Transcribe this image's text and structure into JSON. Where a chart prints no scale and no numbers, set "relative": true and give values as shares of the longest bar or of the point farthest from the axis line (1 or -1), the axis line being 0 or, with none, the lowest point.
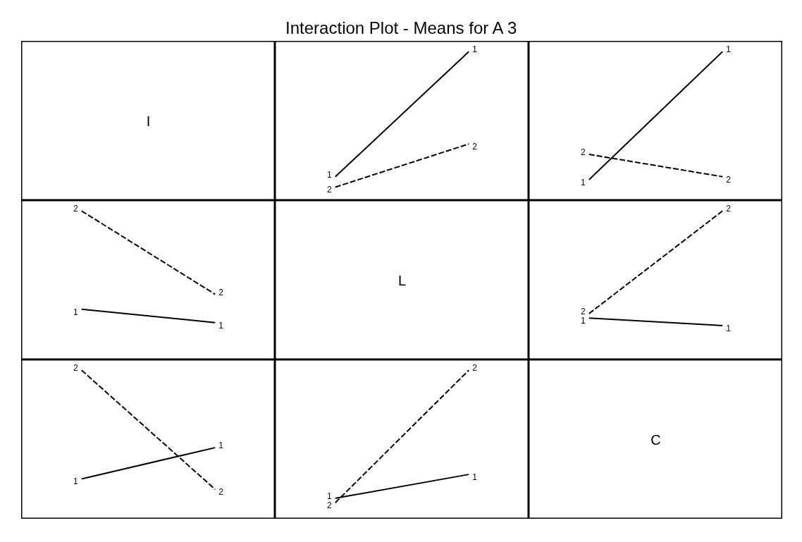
{
  "chart_data": [
    {
      "type": "other",
      "title": "Interaction Plot - Means for A 3",
      "annotations": [
        "I"
      ]
    },
    {
      "type": "line",
      "relative": true,
      "categories": [
        null,
        null
      ],
      "series": [
        {
          "name": "1",
          "color": "#000000",
          "line_style": "solid",
          "values": [
            0.16,
            1
          ]
        },
        {
          "name": "2",
          "color": "#000000",
          "line_style": "dashed",
          "values": [
            0.09,
            0.38
          ]
        }
      ]
    },
    {
      "type": "line",
      "relative": true,
      "categories": [
        null,
        null
      ],
      "series": [
        {
          "name": "1",
          "color": "#000000",
          "line_style": "solid",
          "values": [
            0.14,
            1
          ]
        },
        {
          "name": "2",
          "color": "#000000",
          "line_style": "dashed",
          "values": [
            0.31,
            0.16
          ]
        }
      ]
    },
    {
      "type": "line",
      "relative": true,
      "categories": [
        null,
        null
      ],
      "series": [
        {
          "name": "1",
          "color": "#000000",
          "line_style": "solid",
          "values": [
            0.34,
            0.25
          ]
        },
        {
          "name": "2",
          "color": "#000000",
          "line_style": "dashed",
          "values": [
            1,
            0.44
          ]
        }
      ]
    },
    {
      "type": "other",
      "annotations": [
        "L"
      ]
    },
    {
      "type": "line",
      "relative": true,
      "categories": [
        null,
        null
      ],
      "series": [
        {
          "name": "1",
          "color": "#000000",
          "line_style": "solid",
          "values": [
            0.28,
            0.23
          ]
        },
        {
          "name": "2",
          "color": "#000000",
          "line_style": "dashed",
          "values": [
            0.31,
            1
          ]
        }
      ]
    },
    {
      "type": "line",
      "relative": true,
      "categories": [
        null,
        null
      ],
      "series": [
        {
          "name": "1",
          "color": "#000000",
          "line_style": "solid",
          "values": [
            0.27,
            0.48
          ]
        },
        {
          "name": "2",
          "color": "#000000",
          "line_style": "dashed",
          "values": [
            1,
            0.2
          ]
        }
      ]
    },
    {
      "type": "line",
      "relative": true,
      "categories": [
        null,
        null
      ],
      "series": [
        {
          "name": "1",
          "color": "#000000",
          "line_style": "solid",
          "values": [
            0.14,
            0.3
          ]
        },
        {
          "name": "2",
          "color": "#000000",
          "line_style": "dashed",
          "values": [
            0.11,
            1
          ]
        }
      ]
    },
    {
      "type": "other",
      "annotations": [
        "C"
      ]
    }
  ]
}
